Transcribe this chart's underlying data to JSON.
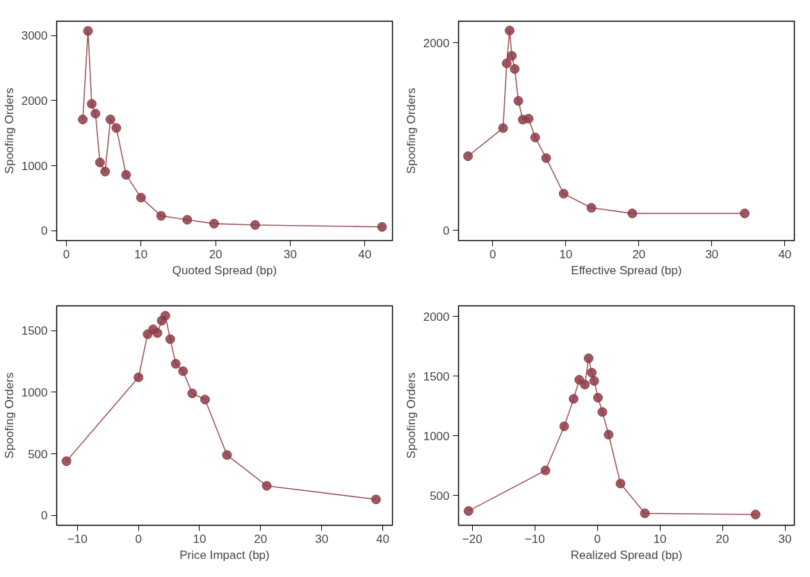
{
  "chart_data": [
    {
      "type": "line",
      "xlabel": "Quoted Spread (bp)",
      "ylabel": "Spoofing Orders",
      "marker": "circle",
      "grid": false,
      "xlim": [
        -1.3,
        43.7
      ],
      "ylim": [
        -150,
        3220
      ],
      "xticks": [
        0,
        10,
        20,
        30,
        40
      ],
      "yticks": [
        0,
        1000,
        2000,
        3000
      ],
      "series": [
        {
          "color": "#8c3b45",
          "x": [
            2.2,
            2.9,
            3.4,
            3.9,
            4.5,
            5.2,
            5.9,
            6.7,
            8.0,
            10.0,
            12.7,
            16.2,
            19.8,
            25.3,
            42.3
          ],
          "values": [
            1710,
            3070,
            1950,
            1800,
            1050,
            910,
            1710,
            1580,
            860,
            510,
            230,
            170,
            110,
            90,
            60
          ]
        }
      ]
    },
    {
      "type": "line",
      "xlabel": "Effective Spread (bp)",
      "ylabel": "Spoofing Orders",
      "marker": "circle",
      "grid": false,
      "xlim": [
        -4.7,
        41.3
      ],
      "ylim": [
        -110,
        2230
      ],
      "xticks": [
        0,
        10,
        20,
        30,
        40
      ],
      "yticks": [
        0,
        2000
      ],
      "series": [
        {
          "color": "#8c3b45",
          "x": [
            -3.4,
            1.4,
            1.9,
            2.3,
            2.6,
            3.0,
            3.5,
            4.1,
            4.9,
            5.8,
            7.3,
            9.7,
            13.5,
            19.1,
            34.5
          ],
          "values": [
            790,
            1090,
            1780,
            2130,
            1860,
            1720,
            1380,
            1180,
            1190,
            990,
            770,
            390,
            240,
            180,
            180
          ]
        }
      ]
    },
    {
      "type": "line",
      "xlabel": "Price Impact (bp)",
      "ylabel": "Spoofing Orders",
      "marker": "circle",
      "grid": false,
      "xlim": [
        -13.4,
        41.6
      ],
      "ylim": [
        -80,
        1700
      ],
      "xticks": [
        -10,
        0,
        10,
        20,
        30,
        40
      ],
      "yticks": [
        0,
        500,
        1000,
        1500
      ],
      "series": [
        {
          "color": "#8c3b45",
          "x": [
            -11.8,
            0.0,
            1.5,
            2.4,
            3.1,
            3.8,
            4.4,
            5.2,
            6.1,
            7.3,
            8.8,
            10.9,
            14.5,
            21.0,
            38.9
          ],
          "values": [
            440,
            1120,
            1470,
            1510,
            1480,
            1580,
            1620,
            1430,
            1230,
            1170,
            990,
            940,
            490,
            240,
            130
          ]
        }
      ]
    },
    {
      "type": "line",
      "xlabel": "Realized Spread (bp)",
      "ylabel": "Spoofing Orders",
      "marker": "circle",
      "grid": false,
      "xlim": [
        -22.2,
        31.5
      ],
      "ylim": [
        250,
        2090
      ],
      "xticks": [
        -20,
        -10,
        0,
        10,
        20,
        30
      ],
      "yticks": [
        500,
        1000,
        1500,
        2000
      ],
      "series": [
        {
          "color": "#8c3b45",
          "x": [
            -20.6,
            -8.3,
            -5.3,
            -3.8,
            -2.9,
            -2.0,
            -1.4,
            -0.9,
            -0.5,
            0.1,
            0.8,
            1.8,
            3.7,
            7.6,
            25.3
          ],
          "values": [
            370,
            710,
            1080,
            1310,
            1470,
            1430,
            1650,
            1530,
            1460,
            1320,
            1200,
            1010,
            600,
            350,
            340
          ]
        }
      ]
    }
  ]
}
